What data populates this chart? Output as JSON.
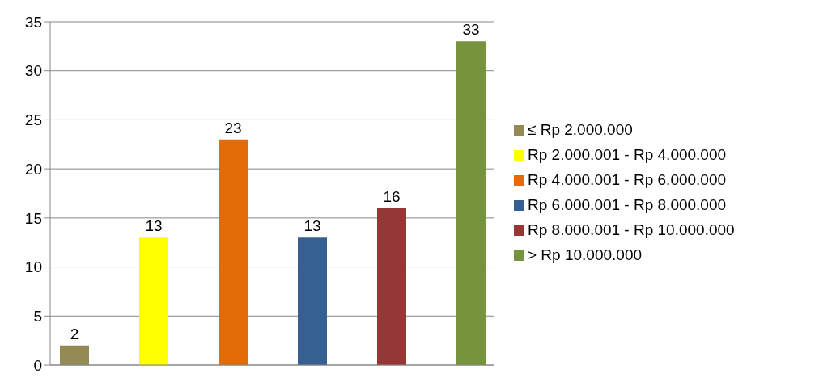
{
  "chart_data": {
    "type": "bar",
    "categories": [
      null
    ],
    "series": [
      {
        "name": "≤ Rp 2.000.000",
        "color": "#948a54",
        "values": [
          2
        ]
      },
      {
        "name": "Rp 2.000.001 - Rp 4.000.000",
        "color": "#ffff00",
        "values": [
          13
        ]
      },
      {
        "name": "Rp 4.000.001 - Rp 6.000.000",
        "color": "#e36c09",
        "values": [
          23
        ]
      },
      {
        "name": "Rp 6.000.001 - Rp 8.000.000",
        "color": "#376092",
        "values": [
          13
        ]
      },
      {
        "name": "Rp 8.000.001 - Rp 10.000.000",
        "color": "#953735",
        "values": [
          16
        ]
      },
      {
        "name": "> Rp 10.000.000",
        "color": "#77933c",
        "values": [
          33
        ]
      }
    ],
    "ylim": [
      0,
      35
    ],
    "yticks": [
      0,
      5,
      10,
      15,
      20,
      25,
      30,
      35
    ],
    "grid": "y",
    "legend": "right",
    "data_labels": true
  }
}
